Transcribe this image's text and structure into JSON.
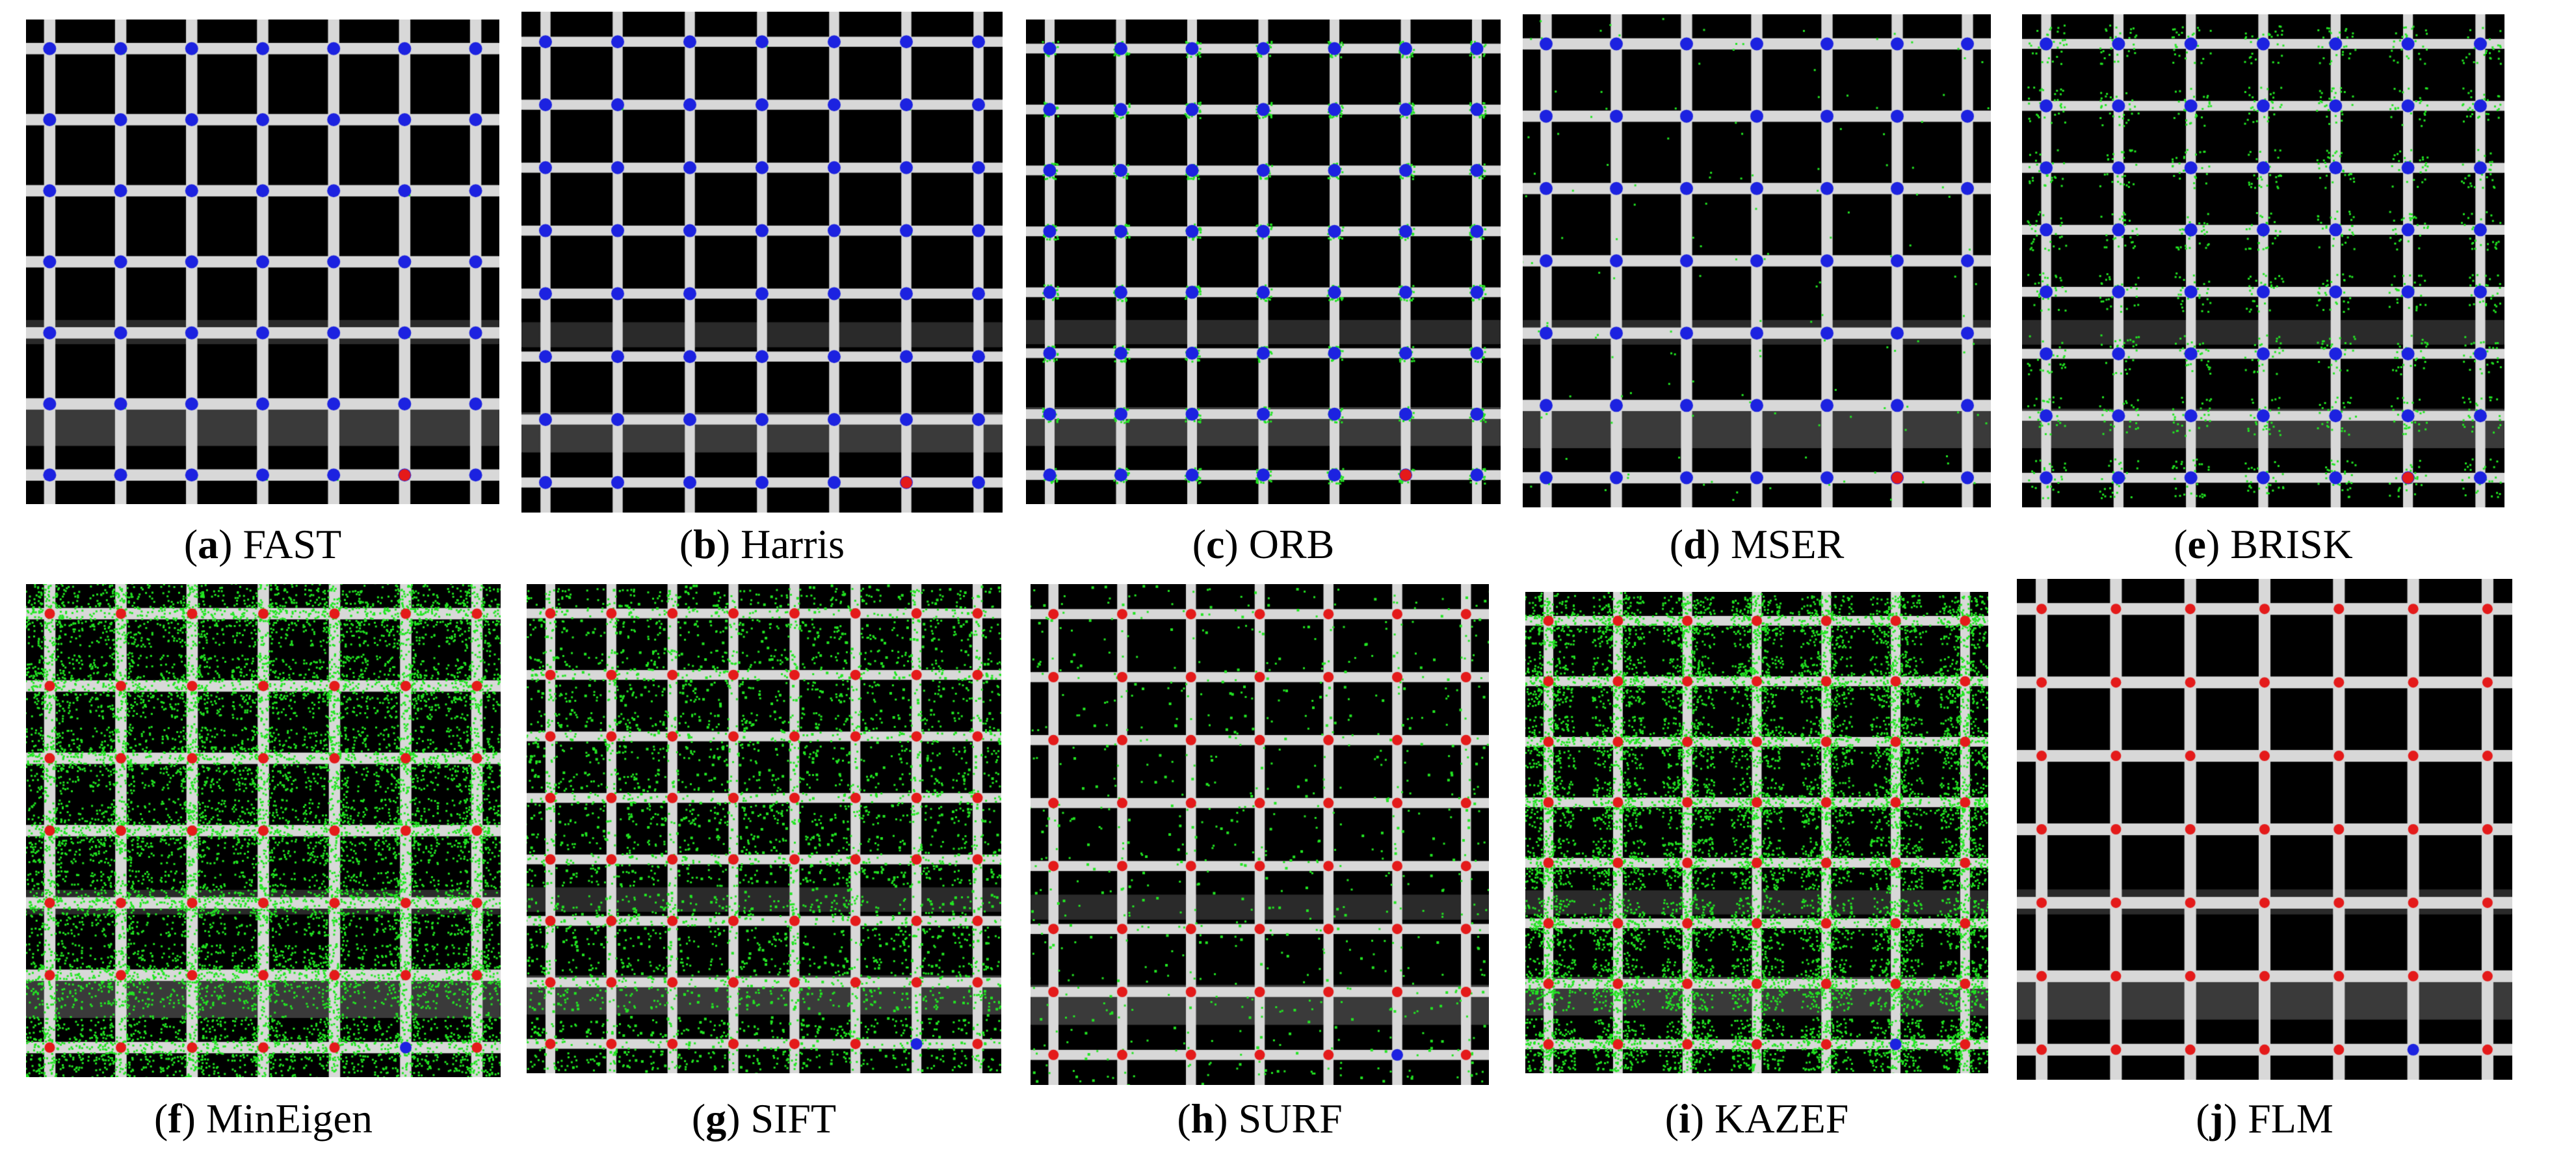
{
  "figure": {
    "panels": [
      {
        "id": "a",
        "method": "FAST",
        "paren_open": "(",
        "letter": "a",
        "paren_close": ")"
      },
      {
        "id": "b",
        "method": "Harris",
        "paren_open": "(",
        "letter": "b",
        "paren_close": ")"
      },
      {
        "id": "c",
        "method": "ORB",
        "paren_open": "(",
        "letter": "c",
        "paren_close": ")"
      },
      {
        "id": "d",
        "method": "MSER",
        "paren_open": "(",
        "letter": "d",
        "paren_close": ")"
      },
      {
        "id": "e",
        "method": "BRISK",
        "paren_open": "(",
        "letter": "e",
        "paren_close": ")"
      },
      {
        "id": "f",
        "method": "MinEigen",
        "paren_open": "(",
        "letter": "f",
        "paren_close": ")"
      },
      {
        "id": "g",
        "method": "SIFT",
        "paren_open": "(",
        "letter": "g",
        "paren_close": ")"
      },
      {
        "id": "h",
        "method": "SURF",
        "paren_open": "(",
        "letter": "h",
        "paren_close": ")"
      },
      {
        "id": "i",
        "method": "KAZEF",
        "paren_open": "(",
        "letter": "i",
        "paren_close": ")"
      },
      {
        "id": "j",
        "method": "FLM",
        "paren_open": "(",
        "letter": "j",
        "paren_close": ")"
      }
    ],
    "colors": {
      "background": "#000000",
      "grid_bar": "#d8d8d8",
      "blue_marker": "#1c22e0",
      "red_marker": "#e41a1a",
      "green_marker": "#22e622"
    }
  }
}
